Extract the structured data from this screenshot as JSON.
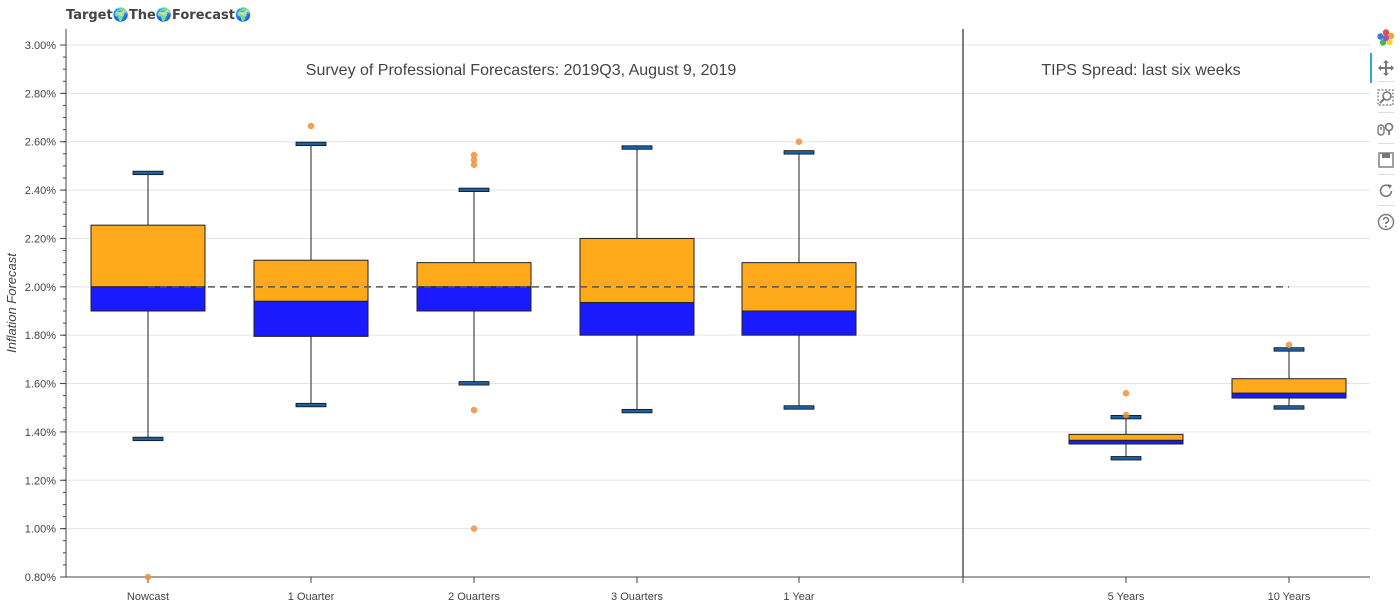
{
  "title": "Target🌍The🌍Forecast🌍",
  "toolbar": {
    "items": [
      {
        "name": "bokeh-logo-icon",
        "active": false
      },
      {
        "name": "pan-icon",
        "active": true
      },
      {
        "name": "box-zoom-icon",
        "active": false
      },
      {
        "name": "wheel-zoom-icon",
        "active": false
      },
      {
        "name": "save-icon",
        "active": false
      },
      {
        "name": "reset-icon",
        "active": false
      },
      {
        "name": "help-icon",
        "active": false
      }
    ]
  },
  "chart_data": {
    "type": "boxplot",
    "ylabel": "Inflation Forecast",
    "ylim": [
      0.8,
      3.1
    ],
    "yticks": [
      "0.80%",
      "1.00%",
      "1.20%",
      "1.40%",
      "1.60%",
      "1.80%",
      "2.00%",
      "2.20%",
      "2.40%",
      "2.60%",
      "2.80%",
      "3.00%"
    ],
    "target_line": 2.0,
    "annotations": {
      "spf": "Survey of Professional Forecasters: 2019Q3, August 9, 2019",
      "tips": "TIPS Spread: last six weeks"
    },
    "colors": {
      "upper_box": "#ffaa1a",
      "lower_box": "#1a1aff",
      "outlier": "#f28f3b",
      "whisker_cap": "#1f5fa0"
    },
    "categories": [
      "Nowcast",
      "1 Quarter",
      "2 Quarters",
      "3 Quarters",
      "1 Year",
      "5 Years",
      "10 Years"
    ],
    "boxes": [
      {
        "category": "Nowcast",
        "lower": 1.37,
        "q1": 1.9,
        "median": 2.0,
        "q3": 2.255,
        "upper": 2.47,
        "outliers": [
          0.8
        ]
      },
      {
        "category": "1 Quarter",
        "lower": 1.51,
        "q1": 1.795,
        "median": 1.94,
        "q3": 2.11,
        "upper": 2.59,
        "outliers": [
          2.665
        ]
      },
      {
        "category": "2 Quarters",
        "lower": 1.6,
        "q1": 1.9,
        "median": 2.0,
        "q3": 2.1,
        "upper": 2.4,
        "outliers": [
          2.545,
          2.525,
          2.505,
          1.49,
          1.0
        ]
      },
      {
        "category": "3 Quarters",
        "lower": 1.485,
        "q1": 1.8,
        "median": 1.935,
        "q3": 2.2,
        "upper": 2.575,
        "outliers": []
      },
      {
        "category": "1 Year",
        "lower": 1.5,
        "q1": 1.8,
        "median": 1.9,
        "q3": 2.1,
        "upper": 2.555,
        "outliers": [
          2.6
        ]
      },
      {
        "category": "5 Years",
        "lower": 1.29,
        "q1": 1.35,
        "median": 1.365,
        "q3": 1.39,
        "upper": 1.46,
        "outliers": [
          1.56,
          1.47
        ]
      },
      {
        "category": "10 Years",
        "lower": 1.5,
        "q1": 1.54,
        "median": 1.56,
        "q3": 1.62,
        "upper": 1.74,
        "outliers": [
          1.76
        ]
      }
    ]
  }
}
